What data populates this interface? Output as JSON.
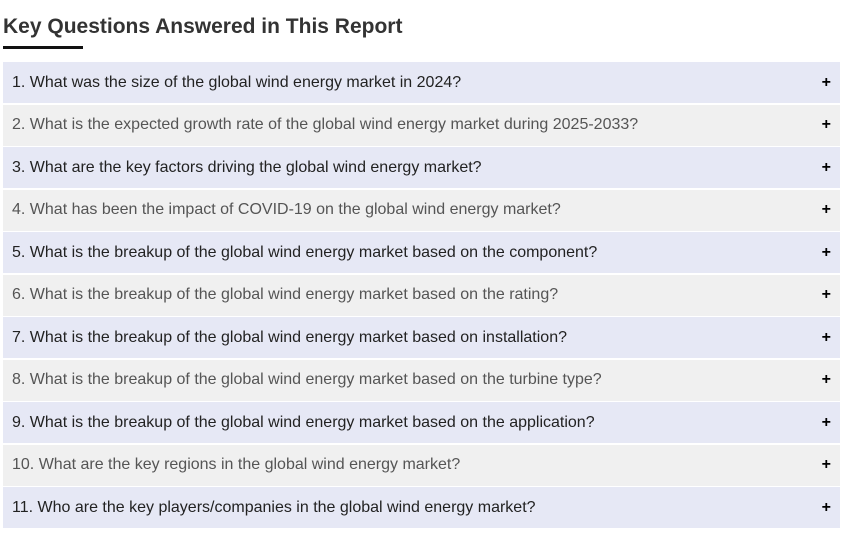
{
  "heading": "Key Questions Answered in This Report",
  "questions": [
    "1. What was the size of the global wind energy market in 2024?",
    "2. What is the expected growth rate of the global wind energy market during 2025-2033?",
    "3. What are the key factors driving the global wind energy market?",
    "4. What has been the impact of COVID-19 on the global wind energy market?",
    "5. What is the breakup of the global wind energy market based on the component?",
    "6. What is the breakup of the global wind energy market based on the rating?",
    "7. What is the breakup of the global wind energy market based on installation?",
    "8. What is the breakup of the global wind energy market based on the turbine type?",
    "9. What is the breakup of the global wind energy market based on the application?",
    "10. What are the key regions in the global wind energy market?",
    "11. Who are the key players/companies in the global wind energy market?"
  ],
  "expand_icon": "+",
  "colors": {
    "odd_row": "#e6e8f5",
    "even_row": "#f0f0f0"
  }
}
